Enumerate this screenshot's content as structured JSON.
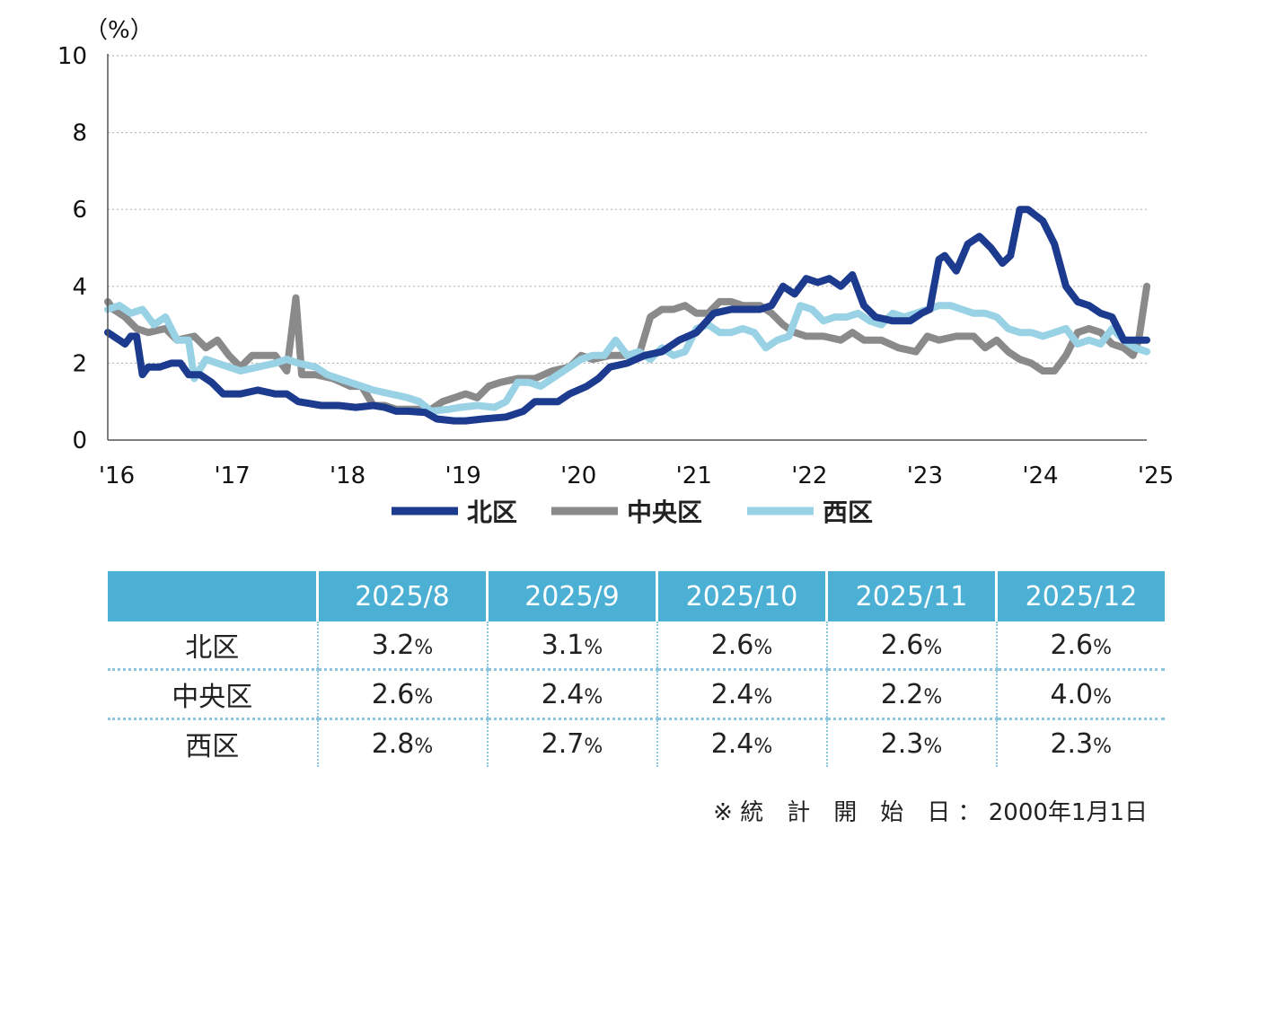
{
  "chart_data": {
    "type": "line",
    "unit_label": "（%）",
    "ylim": [
      0,
      10
    ],
    "yticks": [
      0,
      2,
      4,
      6,
      8,
      10
    ],
    "xlim": [
      2016,
      2025
    ],
    "xticks": [
      {
        "x": 2016,
        "label": "'16"
      },
      {
        "x": 2017,
        "label": "'17"
      },
      {
        "x": 2018,
        "label": "'18"
      },
      {
        "x": 2019,
        "label": "'19"
      },
      {
        "x": 2020,
        "label": "'20"
      },
      {
        "x": 2021,
        "label": "'21"
      },
      {
        "x": 2022,
        "label": "'22"
      },
      {
        "x": 2023,
        "label": "'23"
      },
      {
        "x": 2024,
        "label": "'24"
      },
      {
        "x": 2025,
        "label": "'25"
      }
    ],
    "grid": "horizontal dotted",
    "legend_position": "bottom-center",
    "series": [
      {
        "name": "北区",
        "color": "#1c3a8e",
        "points": [
          [
            2016.0,
            2.8
          ],
          [
            2016.1,
            2.6
          ],
          [
            2016.15,
            2.5
          ],
          [
            2016.2,
            2.7
          ],
          [
            2016.25,
            2.7
          ],
          [
            2016.3,
            1.7
          ],
          [
            2016.35,
            1.9
          ],
          [
            2016.45,
            1.9
          ],
          [
            2016.55,
            2.0
          ],
          [
            2016.63,
            2.0
          ],
          [
            2016.7,
            1.7
          ],
          [
            2016.8,
            1.7
          ],
          [
            2016.9,
            1.5
          ],
          [
            2017.0,
            1.2
          ],
          [
            2017.15,
            1.2
          ],
          [
            2017.3,
            1.3
          ],
          [
            2017.45,
            1.2
          ],
          [
            2017.55,
            1.2
          ],
          [
            2017.65,
            1.0
          ],
          [
            2017.85,
            0.9
          ],
          [
            2018.0,
            0.9
          ],
          [
            2018.15,
            0.85
          ],
          [
            2018.3,
            0.9
          ],
          [
            2018.4,
            0.85
          ],
          [
            2018.5,
            0.75
          ],
          [
            2018.6,
            0.75
          ],
          [
            2018.75,
            0.72
          ],
          [
            2018.85,
            0.55
          ],
          [
            2019.0,
            0.5
          ],
          [
            2019.1,
            0.5
          ],
          [
            2019.25,
            0.55
          ],
          [
            2019.45,
            0.6
          ],
          [
            2019.6,
            0.75
          ],
          [
            2019.7,
            1.0
          ],
          [
            2019.9,
            1.0
          ],
          [
            2020.0,
            1.2
          ],
          [
            2020.15,
            1.4
          ],
          [
            2020.25,
            1.6
          ],
          [
            2020.35,
            1.9
          ],
          [
            2020.5,
            2.0
          ],
          [
            2020.65,
            2.2
          ],
          [
            2020.8,
            2.3
          ],
          [
            2020.95,
            2.6
          ],
          [
            2021.1,
            2.8
          ],
          [
            2021.25,
            3.3
          ],
          [
            2021.4,
            3.4
          ],
          [
            2021.5,
            3.4
          ],
          [
            2021.65,
            3.4
          ],
          [
            2021.75,
            3.5
          ],
          [
            2021.85,
            4.0
          ],
          [
            2021.95,
            3.8
          ],
          [
            2022.05,
            4.2
          ],
          [
            2022.15,
            4.1
          ],
          [
            2022.25,
            4.2
          ],
          [
            2022.35,
            4.0
          ],
          [
            2022.45,
            4.3
          ],
          [
            2022.55,
            3.5
          ],
          [
            2022.65,
            3.2
          ],
          [
            2022.8,
            3.1
          ],
          [
            2022.95,
            3.1
          ],
          [
            2023.05,
            3.3
          ],
          [
            2023.12,
            3.4
          ],
          [
            2023.2,
            4.7
          ],
          [
            2023.25,
            4.8
          ],
          [
            2023.35,
            4.4
          ],
          [
            2023.45,
            5.1
          ],
          [
            2023.55,
            5.3
          ],
          [
            2023.65,
            5.0
          ],
          [
            2023.75,
            4.6
          ],
          [
            2023.82,
            4.8
          ],
          [
            2023.9,
            6.0
          ],
          [
            2023.97,
            6.0
          ],
          [
            2024.1,
            5.7
          ],
          [
            2024.2,
            5.1
          ],
          [
            2024.3,
            4.0
          ],
          [
            2024.4,
            3.6
          ],
          [
            2024.5,
            3.5
          ],
          [
            2024.6,
            3.3
          ],
          [
            2024.7,
            3.2
          ],
          [
            2024.8,
            2.6
          ],
          [
            2024.9,
            2.6
          ],
          [
            2025.0,
            2.6
          ]
        ]
      },
      {
        "name": "中央区",
        "color": "#8a8a8a",
        "points": [
          [
            2016.0,
            3.6
          ],
          [
            2016.05,
            3.4
          ],
          [
            2016.15,
            3.2
          ],
          [
            2016.25,
            2.9
          ],
          [
            2016.35,
            2.8
          ],
          [
            2016.5,
            2.9
          ],
          [
            2016.6,
            2.6
          ],
          [
            2016.75,
            2.7
          ],
          [
            2016.85,
            2.4
          ],
          [
            2016.95,
            2.6
          ],
          [
            2017.05,
            2.2
          ],
          [
            2017.15,
            1.9
          ],
          [
            2017.25,
            2.2
          ],
          [
            2017.35,
            2.2
          ],
          [
            2017.45,
            2.2
          ],
          [
            2017.55,
            1.8
          ],
          [
            2017.63,
            3.7
          ],
          [
            2017.68,
            1.7
          ],
          [
            2017.8,
            1.7
          ],
          [
            2017.95,
            1.6
          ],
          [
            2018.1,
            1.4
          ],
          [
            2018.2,
            1.4
          ],
          [
            2018.3,
            0.9
          ],
          [
            2018.4,
            0.9
          ],
          [
            2018.5,
            0.8
          ],
          [
            2018.65,
            0.8
          ],
          [
            2018.8,
            0.8
          ],
          [
            2018.9,
            1.0
          ],
          [
            2019.0,
            1.1
          ],
          [
            2019.1,
            1.2
          ],
          [
            2019.2,
            1.1
          ],
          [
            2019.3,
            1.4
          ],
          [
            2019.4,
            1.5
          ],
          [
            2019.55,
            1.6
          ],
          [
            2019.7,
            1.6
          ],
          [
            2019.85,
            1.8
          ],
          [
            2020.0,
            1.9
          ],
          [
            2020.1,
            2.2
          ],
          [
            2020.2,
            2.1
          ],
          [
            2020.35,
            2.2
          ],
          [
            2020.5,
            2.2
          ],
          [
            2020.6,
            2.2
          ],
          [
            2020.7,
            3.2
          ],
          [
            2020.8,
            3.4
          ],
          [
            2020.9,
            3.4
          ],
          [
            2021.0,
            3.5
          ],
          [
            2021.1,
            3.3
          ],
          [
            2021.2,
            3.3
          ],
          [
            2021.3,
            3.6
          ],
          [
            2021.4,
            3.6
          ],
          [
            2021.5,
            3.5
          ],
          [
            2021.65,
            3.5
          ],
          [
            2021.75,
            3.3
          ],
          [
            2021.85,
            3.0
          ],
          [
            2021.95,
            2.8
          ],
          [
            2022.05,
            2.7
          ],
          [
            2022.2,
            2.7
          ],
          [
            2022.35,
            2.6
          ],
          [
            2022.45,
            2.8
          ],
          [
            2022.55,
            2.6
          ],
          [
            2022.7,
            2.6
          ],
          [
            2022.85,
            2.4
          ],
          [
            2023.0,
            2.3
          ],
          [
            2023.1,
            2.7
          ],
          [
            2023.2,
            2.6
          ],
          [
            2023.35,
            2.7
          ],
          [
            2023.5,
            2.7
          ],
          [
            2023.6,
            2.4
          ],
          [
            2023.7,
            2.6
          ],
          [
            2023.8,
            2.3
          ],
          [
            2023.9,
            2.1
          ],
          [
            2024.0,
            2.0
          ],
          [
            2024.1,
            1.8
          ],
          [
            2024.2,
            1.8
          ],
          [
            2024.3,
            2.2
          ],
          [
            2024.4,
            2.8
          ],
          [
            2024.5,
            2.9
          ],
          [
            2024.6,
            2.8
          ],
          [
            2024.7,
            2.5
          ],
          [
            2024.8,
            2.4
          ],
          [
            2024.88,
            2.2
          ],
          [
            2024.93,
            2.6
          ],
          [
            2025.0,
            4.0
          ]
        ]
      },
      {
        "name": "西区",
        "color": "#99d1e5",
        "points": [
          [
            2016.0,
            3.4
          ],
          [
            2016.1,
            3.5
          ],
          [
            2016.2,
            3.3
          ],
          [
            2016.3,
            3.4
          ],
          [
            2016.4,
            3.0
          ],
          [
            2016.5,
            3.2
          ],
          [
            2016.6,
            2.6
          ],
          [
            2016.7,
            2.6
          ],
          [
            2016.75,
            1.6
          ],
          [
            2016.85,
            2.1
          ],
          [
            2016.95,
            2.0
          ],
          [
            2017.05,
            1.9
          ],
          [
            2017.15,
            1.8
          ],
          [
            2017.3,
            1.9
          ],
          [
            2017.45,
            2.0
          ],
          [
            2017.55,
            2.1
          ],
          [
            2017.65,
            2.0
          ],
          [
            2017.8,
            1.9
          ],
          [
            2017.9,
            1.7
          ],
          [
            2018.0,
            1.6
          ],
          [
            2018.1,
            1.5
          ],
          [
            2018.2,
            1.4
          ],
          [
            2018.3,
            1.3
          ],
          [
            2018.45,
            1.2
          ],
          [
            2018.6,
            1.1
          ],
          [
            2018.7,
            1.0
          ],
          [
            2018.8,
            0.75
          ],
          [
            2018.95,
            0.8
          ],
          [
            2019.05,
            0.85
          ],
          [
            2019.2,
            0.9
          ],
          [
            2019.35,
            0.85
          ],
          [
            2019.45,
            1.0
          ],
          [
            2019.55,
            1.5
          ],
          [
            2019.65,
            1.5
          ],
          [
            2019.75,
            1.4
          ],
          [
            2019.9,
            1.7
          ],
          [
            2020.0,
            1.9
          ],
          [
            2020.1,
            2.1
          ],
          [
            2020.2,
            2.2
          ],
          [
            2020.3,
            2.2
          ],
          [
            2020.4,
            2.6
          ],
          [
            2020.5,
            2.2
          ],
          [
            2020.6,
            2.3
          ],
          [
            2020.7,
            2.1
          ],
          [
            2020.8,
            2.4
          ],
          [
            2020.9,
            2.2
          ],
          [
            2021.0,
            2.3
          ],
          [
            2021.1,
            2.9
          ],
          [
            2021.2,
            3.0
          ],
          [
            2021.3,
            2.8
          ],
          [
            2021.4,
            2.8
          ],
          [
            2021.5,
            2.9
          ],
          [
            2021.6,
            2.8
          ],
          [
            2021.7,
            2.4
          ],
          [
            2021.8,
            2.6
          ],
          [
            2021.9,
            2.7
          ],
          [
            2022.0,
            3.5
          ],
          [
            2022.1,
            3.4
          ],
          [
            2022.2,
            3.1
          ],
          [
            2022.3,
            3.2
          ],
          [
            2022.4,
            3.2
          ],
          [
            2022.5,
            3.3
          ],
          [
            2022.6,
            3.1
          ],
          [
            2022.7,
            3.0
          ],
          [
            2022.8,
            3.3
          ],
          [
            2022.9,
            3.2
          ],
          [
            2023.0,
            3.3
          ],
          [
            2023.1,
            3.4
          ],
          [
            2023.2,
            3.5
          ],
          [
            2023.3,
            3.5
          ],
          [
            2023.4,
            3.4
          ],
          [
            2023.5,
            3.3
          ],
          [
            2023.6,
            3.3
          ],
          [
            2023.7,
            3.2
          ],
          [
            2023.8,
            2.9
          ],
          [
            2023.9,
            2.8
          ],
          [
            2024.0,
            2.8
          ],
          [
            2024.1,
            2.7
          ],
          [
            2024.2,
            2.8
          ],
          [
            2024.3,
            2.9
          ],
          [
            2024.4,
            2.5
          ],
          [
            2024.5,
            2.6
          ],
          [
            2024.6,
            2.5
          ],
          [
            2024.7,
            2.9
          ],
          [
            2024.8,
            2.6
          ],
          [
            2024.9,
            2.4
          ],
          [
            2025.0,
            2.3
          ]
        ]
      }
    ]
  },
  "table": {
    "headers": [
      "",
      "2025/8",
      "2025/9",
      "2025/10",
      "2025/11",
      "2025/12"
    ],
    "rows": [
      {
        "label": "北区",
        "values": [
          "3.2",
          "3.1",
          "2.6",
          "2.6",
          "2.6"
        ]
      },
      {
        "label": "中央区",
        "values": [
          "2.6",
          "2.4",
          "2.4",
          "2.2",
          "4.0"
        ]
      },
      {
        "label": "西区",
        "values": [
          "2.8",
          "2.7",
          "2.4",
          "2.3",
          "2.3"
        ]
      }
    ],
    "percent_sign": "%"
  },
  "note": "※ 統　計　開　始　日 ： 2000年1月1日"
}
